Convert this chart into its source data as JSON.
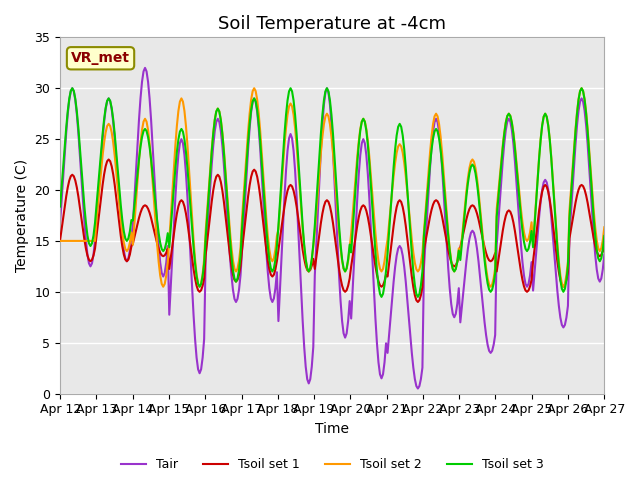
{
  "title": "Soil Temperature at -4cm",
  "xlabel": "Time",
  "ylabel": "Temperature (C)",
  "ylim": [
    0,
    35
  ],
  "annotation": "VR_met",
  "background_color": "#ffffff",
  "plot_bg_color": "#e8e8e8",
  "grid_color": "#ffffff",
  "line_colors": {
    "Tair": "#9933cc",
    "Tsoil1": "#cc0000",
    "Tsoil2": "#ff9900",
    "Tsoil3": "#00cc00"
  },
  "legend_labels": [
    "Tair",
    "Tsoil set 1",
    "Tsoil set 2",
    "Tsoil set 3"
  ],
  "x_tick_labels": [
    "Apr 12",
    "Apr 13",
    "Apr 14",
    "Apr 15",
    "Apr 16",
    "Apr 17",
    "Apr 18",
    "Apr 19",
    "Apr 20",
    "Apr 21",
    "Apr 22",
    "Apr 23",
    "Apr 24",
    "Apr 25",
    "Apr 26",
    "Apr 27"
  ],
  "title_fontsize": 13,
  "label_fontsize": 10,
  "tick_fontsize": 9,
  "legend_fontsize": 9,
  "line_width": 1.5,
  "tair_peaks": [
    30,
    29,
    32,
    25,
    27,
    29,
    25.5,
    30,
    25,
    14.5,
    27,
    16,
    27,
    21,
    29
  ],
  "tair_troughs": [
    12.5,
    13,
    11.5,
    2,
    9,
    9,
    1,
    5.5,
    1.5,
    0.5,
    7.5,
    4,
    10.5,
    6.5,
    11
  ],
  "tsoil1_peaks": [
    21.5,
    23,
    18.5,
    19,
    21.5,
    22,
    20.5,
    19,
    18.5,
    19,
    19,
    18.5,
    18,
    20.5,
    20.5
  ],
  "tsoil1_troughs": [
    13,
    13,
    13.5,
    10,
    11,
    11.5,
    12,
    10,
    10.5,
    9,
    12.5,
    13,
    10,
    10.5,
    13.5
  ],
  "tsoil2_peaks": [
    15,
    26.5,
    27,
    29,
    28,
    30,
    28.5,
    27.5,
    27,
    24.5,
    27.5,
    23,
    27.5,
    27.5,
    30
  ],
  "tsoil2_troughs": [
    15,
    14,
    10.5,
    10.5,
    12,
    13,
    12,
    12,
    12,
    12,
    12,
    10.5,
    15,
    10.5,
    14
  ],
  "tsoil3_peaks": [
    30,
    29,
    26,
    26,
    28,
    29,
    30,
    30,
    27,
    26.5,
    26,
    22.5,
    27.5,
    27.5,
    30
  ],
  "tsoil3_troughs": [
    14.5,
    15,
    14,
    10.5,
    11,
    12,
    12,
    12,
    9.5,
    9.5,
    12,
    10,
    14,
    10,
    13
  ]
}
